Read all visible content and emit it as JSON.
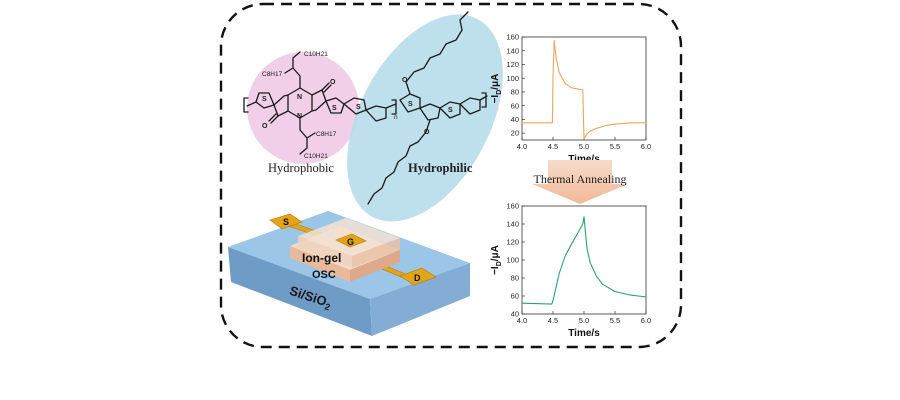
{
  "molecule": {
    "label_hydrophobic": "Hydrophobic",
    "label_hydrophilic": "Hydrophilic",
    "chain_top_a": "C10H21",
    "chain_top_b": "C8H17",
    "chain_bottom_a": "C8H17",
    "chain_bottom_b": "C10H21",
    "subscript_n": "n",
    "colors": {
      "hydrophobic_bg": "#f1cfe8",
      "hydrophilic_bg": "#b7dcea"
    }
  },
  "device": {
    "substrate_label": "Si/SiO2",
    "ion_gel_label": "Ion-gel",
    "osc_label": "OSC",
    "source_label": "S",
    "gate_label": "G",
    "drain_label": "D",
    "colors": {
      "substrate_top": "#9cc6e8",
      "electrode": "#e2a419"
    }
  },
  "arrow": {
    "label": "Thermal Annealing",
    "color": "#f4c9b0"
  },
  "chart_data": [
    {
      "type": "line",
      "title": "",
      "xlabel": "Time/s",
      "ylabel": "−I_D/μA",
      "xlim": [
        4.0,
        6.0
      ],
      "ylim": [
        10,
        160
      ],
      "xticks": [
        4.0,
        4.5,
        5.0,
        5.5,
        6.0
      ],
      "yticks": [
        20,
        40,
        60,
        80,
        100,
        120,
        140,
        160
      ],
      "series": [
        {
          "color": "#f0a55a",
          "x": [
            4.0,
            4.49,
            4.5,
            4.52,
            4.55,
            4.6,
            4.7,
            4.8,
            4.98,
            5.0,
            5.05,
            5.1,
            5.2,
            5.35,
            5.5,
            5.75,
            6.0
          ],
          "y": [
            35,
            35,
            100,
            155,
            130,
            108,
            92,
            86,
            83,
            12,
            19,
            23,
            27,
            31,
            33,
            35,
            35
          ]
        }
      ]
    },
    {
      "type": "line",
      "title": "",
      "xlabel": "Time/s",
      "ylabel": "−I_D/μA",
      "xlim": [
        4.0,
        6.0
      ],
      "ylim": [
        40,
        160
      ],
      "xticks": [
        4.0,
        4.5,
        5.0,
        5.5,
        6.0
      ],
      "yticks": [
        40,
        60,
        80,
        100,
        120,
        140,
        160
      ],
      "series": [
        {
          "color": "#2e9e73",
          "x": [
            4.0,
            4.48,
            4.5,
            4.6,
            4.7,
            4.8,
            4.9,
            4.98,
            5.0,
            5.05,
            5.1,
            5.2,
            5.3,
            5.5,
            5.75,
            6.0
          ],
          "y": [
            52,
            51,
            55,
            85,
            105,
            118,
            130,
            140,
            148,
            112,
            97,
            82,
            73,
            65,
            61,
            59
          ]
        }
      ]
    }
  ]
}
